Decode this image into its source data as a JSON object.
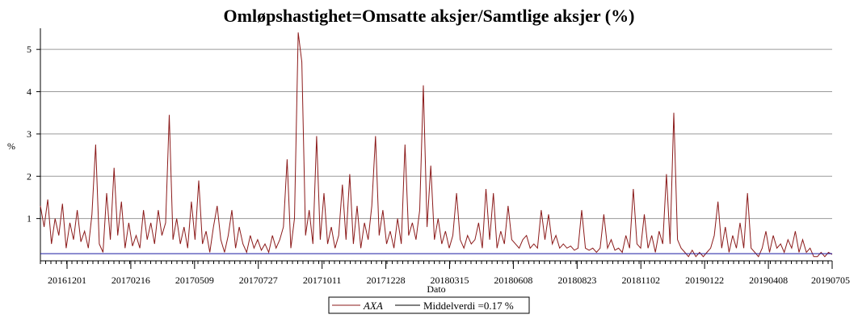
{
  "chart_data": {
    "type": "line",
    "title": "Omløpshastighet=Omsatte aksjer/Samtlige aksjer (%)",
    "xlabel": "Dato",
    "ylabel": "%",
    "ylim": [
      0,
      5.5
    ],
    "yticks": [
      1,
      2,
      3,
      4,
      5
    ],
    "grid": true,
    "legend_position": "bottom-center",
    "x_tick_labels": [
      "20161201",
      "20170216",
      "20170509",
      "20170727",
      "20171011",
      "20171228",
      "20180315",
      "20180608",
      "20180823",
      "20181102",
      "20190122",
      "20190408",
      "20190705"
    ],
    "series": [
      {
        "name": "AXA",
        "color": "#8b1a1a",
        "values": [
          1.3,
          0.8,
          1.45,
          0.4,
          1.0,
          0.6,
          1.35,
          0.3,
          0.9,
          0.5,
          1.2,
          0.45,
          0.7,
          0.3,
          1.1,
          2.75,
          0.4,
          0.2,
          1.6,
          0.5,
          2.2,
          0.6,
          1.4,
          0.3,
          0.9,
          0.35,
          0.6,
          0.3,
          1.2,
          0.5,
          0.9,
          0.4,
          1.2,
          0.6,
          0.9,
          3.45,
          0.5,
          1.0,
          0.4,
          0.8,
          0.3,
          1.4,
          0.5,
          1.9,
          0.4,
          0.7,
          0.2,
          0.8,
          1.3,
          0.5,
          0.2,
          0.6,
          1.2,
          0.3,
          0.8,
          0.4,
          0.2,
          0.6,
          0.3,
          0.5,
          0.25,
          0.4,
          0.2,
          0.6,
          0.3,
          0.5,
          0.8,
          2.4,
          0.3,
          1.0,
          5.4,
          4.7,
          0.6,
          1.2,
          0.4,
          2.95,
          0.5,
          1.6,
          0.4,
          0.8,
          0.3,
          0.6,
          1.8,
          0.5,
          2.05,
          0.4,
          1.3,
          0.3,
          0.9,
          0.5,
          1.3,
          2.95,
          0.6,
          1.2,
          0.4,
          0.7,
          0.3,
          1.0,
          0.4,
          2.75,
          0.6,
          0.9,
          0.5,
          1.2,
          4.15,
          0.8,
          2.25,
          0.5,
          1.0,
          0.4,
          0.7,
          0.3,
          0.6,
          1.6,
          0.5,
          0.3,
          0.6,
          0.4,
          0.5,
          0.9,
          0.3,
          1.7,
          0.5,
          1.6,
          0.3,
          0.7,
          0.4,
          1.3,
          0.5,
          0.4,
          0.3,
          0.5,
          0.6,
          0.3,
          0.4,
          0.3,
          1.2,
          0.5,
          1.1,
          0.4,
          0.6,
          0.3,
          0.4,
          0.3,
          0.35,
          0.25,
          0.3,
          1.2,
          0.3,
          0.25,
          0.3,
          0.2,
          0.3,
          1.1,
          0.3,
          0.5,
          0.25,
          0.3,
          0.2,
          0.6,
          0.3,
          1.7,
          0.4,
          0.3,
          1.1,
          0.3,
          0.6,
          0.2,
          0.7,
          0.4,
          2.05,
          0.4,
          3.5,
          0.5,
          0.3,
          0.2,
          0.1,
          0.25,
          0.1,
          0.2,
          0.1,
          0.2,
          0.3,
          0.6,
          1.4,
          0.3,
          0.8,
          0.2,
          0.6,
          0.3,
          0.9,
          0.3,
          1.6,
          0.3,
          0.2,
          0.1,
          0.3,
          0.7,
          0.2,
          0.6,
          0.3,
          0.4,
          0.2,
          0.5,
          0.3,
          0.7,
          0.2,
          0.5,
          0.2,
          0.3,
          0.1,
          0.1,
          0.2,
          0.1,
          0.2,
          0.15
        ]
      },
      {
        "name": "Middelverdi =0.17 %",
        "color": "#1a1aa0",
        "constant": 0.17
      }
    ]
  },
  "legend": {
    "series1_label": "AXA",
    "series2_label": "Middelverdi =0.17 %"
  }
}
